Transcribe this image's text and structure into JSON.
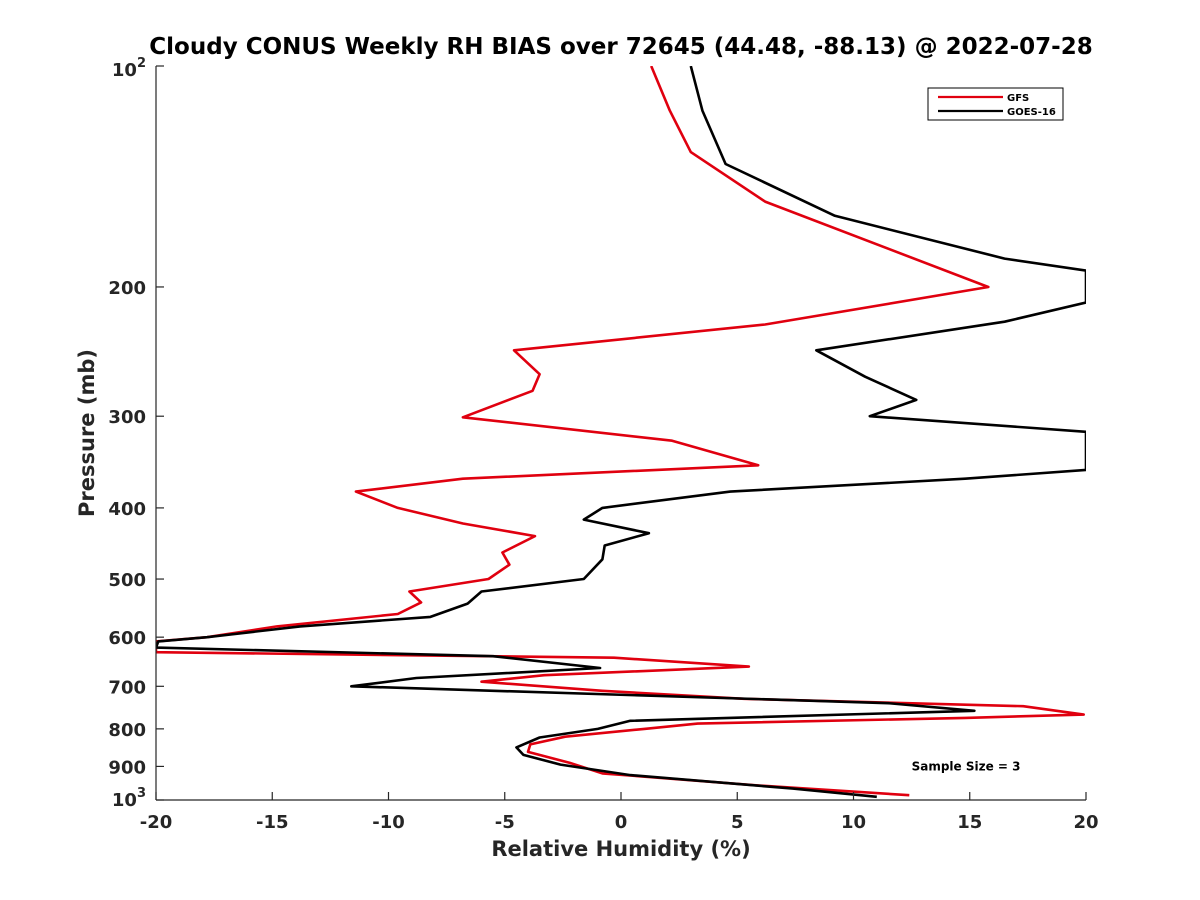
{
  "chart_data": {
    "type": "line",
    "title": "Cloudy CONUS Weekly RH BIAS over 72645 (44.48, -88.13) @ 2022-07-28",
    "xlabel": "Relative Humidity (%)",
    "ylabel": "Pressure (mb)",
    "xlim": [
      -20,
      20
    ],
    "ylim": [
      100,
      1000
    ],
    "y_scale": "log",
    "y_reversed": true,
    "grid": false,
    "legend_position": "top-right",
    "x_ticks": [
      {
        "value": -20,
        "label": "-20"
      },
      {
        "value": -15,
        "label": "-15"
      },
      {
        "value": -10,
        "label": "-10"
      },
      {
        "value": -5,
        "label": "-5"
      },
      {
        "value": 0,
        "label": "0"
      },
      {
        "value": 5,
        "label": "5"
      },
      {
        "value": 10,
        "label": "10"
      },
      {
        "value": 15,
        "label": "15"
      },
      {
        "value": 20,
        "label": "20"
      }
    ],
    "y_ticks": [
      {
        "value": 100,
        "base": "10",
        "exp": "2"
      },
      {
        "value": 200,
        "base": "200",
        "exp": ""
      },
      {
        "value": 300,
        "base": "300",
        "exp": ""
      },
      {
        "value": 400,
        "base": "400",
        "exp": ""
      },
      {
        "value": 500,
        "base": "500",
        "exp": ""
      },
      {
        "value": 600,
        "base": "600",
        "exp": ""
      },
      {
        "value": 700,
        "base": "700",
        "exp": ""
      },
      {
        "value": 800,
        "base": "800",
        "exp": ""
      },
      {
        "value": 900,
        "base": "900",
        "exp": ""
      },
      {
        "value": 1000,
        "base": "10",
        "exp": "3"
      }
    ],
    "series": [
      {
        "name": "GFS",
        "color": "#e0000f",
        "points": [
          [
            1.3,
            100
          ],
          [
            2.1,
            115
          ],
          [
            3.0,
            131
          ],
          [
            6.2,
            153
          ],
          [
            15.8,
            200
          ],
          [
            6.2,
            225
          ],
          [
            -4.6,
            244
          ],
          [
            -3.5,
            263
          ],
          [
            -3.8,
            277
          ],
          [
            -6.8,
            301
          ],
          [
            2.2,
            324
          ],
          [
            5.9,
            350
          ],
          [
            -6.8,
            365
          ],
          [
            -11.4,
            380
          ],
          [
            -9.6,
            400
          ],
          [
            -6.8,
            420
          ],
          [
            -3.7,
            437
          ],
          [
            -5.1,
            460
          ],
          [
            -4.8,
            478
          ],
          [
            -5.7,
            500
          ],
          [
            -9.1,
            520
          ],
          [
            -8.6,
            538
          ],
          [
            -9.6,
            558
          ],
          [
            -14.8,
            580
          ],
          [
            -17.8,
            600
          ],
          [
            -20,
            608
          ],
          [
            -20,
            620
          ],
          [
            -20,
            629
          ],
          [
            -0.3,
            640
          ],
          [
            5.5,
            658
          ],
          [
            -3.3,
            676
          ],
          [
            -6.0,
            690
          ],
          [
            -0.8,
            710
          ],
          [
            5.3,
            728
          ],
          [
            17.3,
            745
          ],
          [
            19.9,
            765
          ],
          [
            14.8,
            773
          ],
          [
            3.3,
            787
          ],
          [
            1.0,
            800
          ],
          [
            -2.4,
            820
          ],
          [
            -3.9,
            840
          ],
          [
            -4.0,
            860
          ],
          [
            -2.2,
            890
          ],
          [
            -0.8,
            920
          ],
          [
            5.8,
            955
          ],
          [
            12.4,
            985
          ]
        ]
      },
      {
        "name": "GOES-16",
        "color": "#000000",
        "points": [
          [
            3.0,
            100
          ],
          [
            3.5,
            115
          ],
          [
            4.5,
            136
          ],
          [
            9.2,
            160
          ],
          [
            16.5,
            183
          ],
          [
            20,
            190
          ],
          [
            20,
            210
          ],
          [
            16.5,
            223
          ],
          [
            8.4,
            244
          ],
          [
            10.5,
            265
          ],
          [
            12.7,
            285
          ],
          [
            10.7,
            300
          ],
          [
            20,
            315
          ],
          [
            20,
            355
          ],
          [
            14.8,
            365
          ],
          [
            4.7,
            380
          ],
          [
            -0.8,
            400
          ],
          [
            -1.6,
            415
          ],
          [
            1.2,
            433
          ],
          [
            -0.7,
            450
          ],
          [
            -0.8,
            470
          ],
          [
            -1.6,
            500
          ],
          [
            -6.0,
            520
          ],
          [
            -6.6,
            540
          ],
          [
            -8.2,
            563
          ],
          [
            -13.8,
            580
          ],
          [
            -17.8,
            600
          ],
          [
            -19.9,
            608
          ],
          [
            -20,
            620
          ],
          [
            -5.5,
            637
          ],
          [
            -0.9,
            661
          ],
          [
            -8.8,
            682
          ],
          [
            -11.6,
            700
          ],
          [
            11.5,
            738
          ],
          [
            15.2,
            756
          ],
          [
            0.4,
            780
          ],
          [
            -1.0,
            800
          ],
          [
            -3.5,
            822
          ],
          [
            -4.5,
            848
          ],
          [
            -4.2,
            868
          ],
          [
            -2.6,
            895
          ],
          [
            0.4,
            925
          ],
          [
            7.4,
            965
          ],
          [
            11.0,
            990
          ]
        ]
      }
    ],
    "annotations": [
      {
        "text": "Sample Size = 3",
        "x": 12.5,
        "y": 900
      }
    ]
  }
}
